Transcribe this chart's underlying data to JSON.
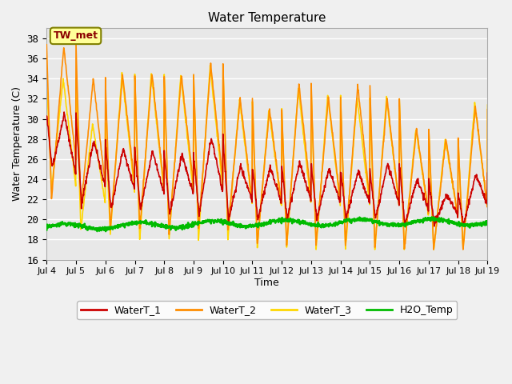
{
  "title": "Water Temperature",
  "xlabel": "Time",
  "ylabel": "Water Temperature (C)",
  "ylim": [
    16,
    39
  ],
  "yticks": [
    16,
    18,
    20,
    22,
    24,
    26,
    28,
    30,
    32,
    34,
    36,
    38
  ],
  "xtick_labels": [
    "Jul 4",
    "Jul 5",
    "Jul 6",
    "Jul 7",
    "Jul 8",
    "Jul 9",
    "Jul 10",
    "Jul 11",
    "Jul 12",
    "Jul 13",
    "Jul 14",
    "Jul 15",
    "Jul 16",
    "Jul 17",
    "Jul 18",
    "Jul 19"
  ],
  "annotation_text": "TW_met",
  "annotation_color": "#8B0000",
  "annotation_bg": "#FFFF99",
  "annotation_border": "#808000",
  "colors": {
    "WaterT_1": "#CC0000",
    "WaterT_2": "#FF8C00",
    "WaterT_3": "#FFD700",
    "H2O_Temp": "#00BB00"
  },
  "line_widths": {
    "WaterT_1": 1.2,
    "WaterT_2": 1.2,
    "WaterT_3": 1.2,
    "H2O_Temp": 1.8
  },
  "ax_facecolor": "#E8E8E8",
  "fig_facecolor": "#F0F0F0",
  "grid_color": "#FFFFFF",
  "legend_labels": [
    "WaterT_1",
    "WaterT_2",
    "WaterT_3",
    "H2O_Temp"
  ],
  "wt2_peaks": [
    22.0,
    37.2,
    21.0,
    34.0,
    19.0,
    34.4,
    19.0,
    34.5,
    18.5,
    34.3,
    19.0,
    35.4,
    19.0,
    32.0,
    17.5,
    31.0,
    17.5,
    33.5,
    17.5,
    32.1,
    17.5,
    33.3,
    17.3,
    32.0,
    17.0,
    29.0,
    17.0,
    28.0,
    17.0,
    31.2,
    17.0
  ],
  "wt1_peaks": [
    25.0,
    30.5,
    21.5,
    27.8,
    21.0,
    27.0,
    21.0,
    26.8,
    20.5,
    26.5,
    20.5,
    28.2,
    20.0,
    25.3,
    20.0,
    25.2,
    20.0,
    25.7,
    20.0,
    25.0,
    20.0,
    24.8,
    20.0,
    25.5,
    19.5,
    24.0,
    19.5,
    22.5,
    19.5,
    24.5,
    20.0
  ],
  "wt3_peaks": [
    23.0,
    34.0,
    19.0,
    29.5,
    18.5,
    34.5,
    18.0,
    34.5,
    18.0,
    34.3,
    18.0,
    35.3,
    18.0,
    31.9,
    17.2,
    30.9,
    17.2,
    33.0,
    17.0,
    32.3,
    17.0,
    32.1,
    17.0,
    32.0,
    17.0,
    29.0,
    17.0,
    28.0,
    17.0,
    31.5,
    17.0
  ],
  "h2o_base": 19.2,
  "h2o_max": 20.5
}
